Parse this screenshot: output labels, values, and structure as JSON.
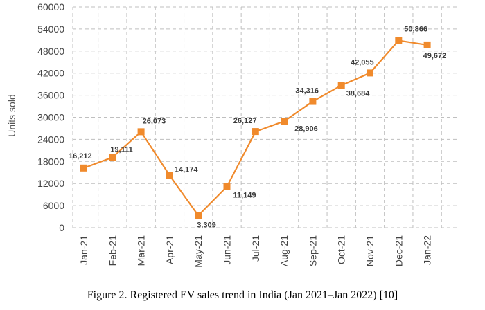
{
  "caption": "Figure 2. Registered EV sales trend in India (Jan 2021–Jan 2022) [10]",
  "chart_data": {
    "type": "line",
    "title": "",
    "xlabel": "",
    "ylabel": "Units sold",
    "categories": [
      "Jan-21",
      "Feb-21",
      "Mar-21",
      "Apr-21",
      "May-21",
      "Jun-21",
      "Jul-21",
      "Aug-21",
      "Sep-21",
      "Oct-21",
      "Nov-21",
      "Dec-21",
      "Jan-22"
    ],
    "values": [
      16212,
      19111,
      26073,
      14174,
      3309,
      11149,
      26127,
      28906,
      34316,
      38684,
      42055,
      50866,
      49672
    ],
    "data_labels": [
      "16,212",
      "19,111",
      "26,073",
      "14,174",
      "3,309",
      "11,149",
      "26,127",
      "28,906",
      "34,316",
      "38,684",
      "42,055",
      "50,866",
      "49,672"
    ],
    "ylim": [
      0,
      60000
    ],
    "yticks": [
      0,
      6000,
      12000,
      18000,
      24000,
      30000,
      36000,
      42000,
      48000,
      54000,
      60000
    ],
    "grid": true,
    "grid_style": "dashed",
    "line_color": "#F08A2C",
    "marker": "square",
    "gridline_color": "#bfbfbf"
  }
}
